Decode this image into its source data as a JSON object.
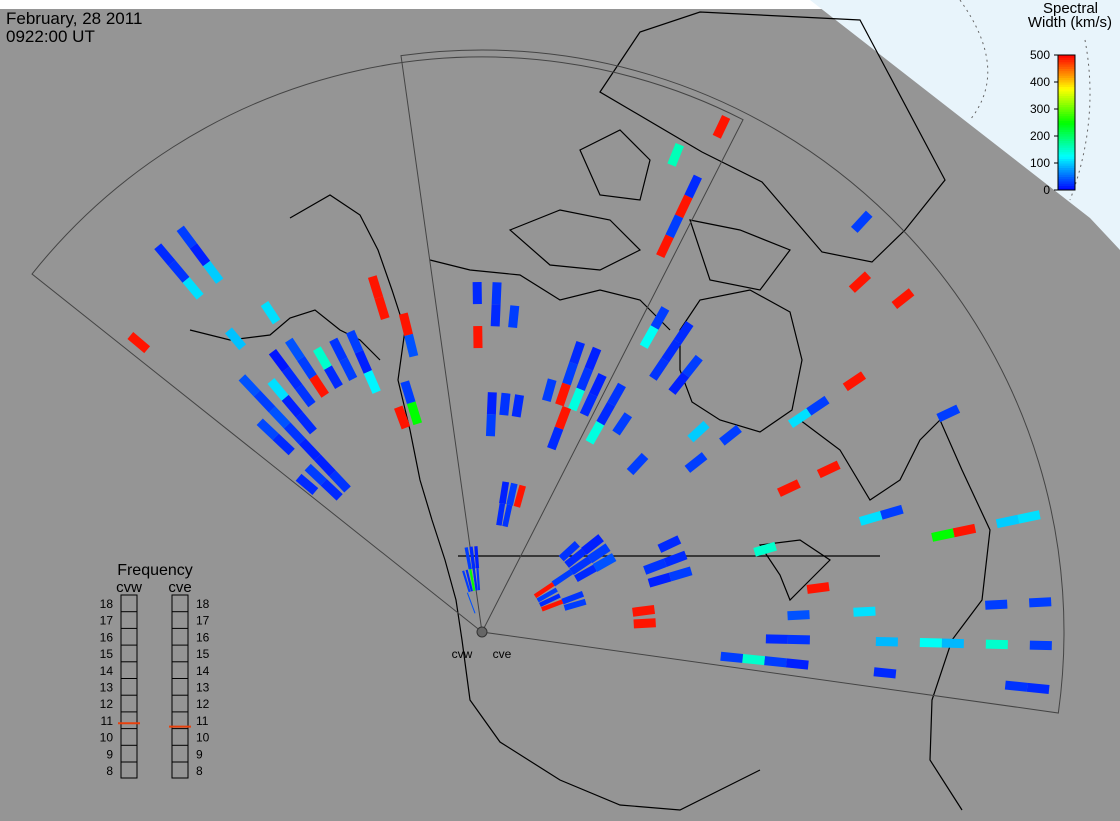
{
  "header": {
    "date": "February, 28 2011",
    "time": "0922:00 UT"
  },
  "colorbar": {
    "title_lines": [
      "Spectral",
      "Width (km/s)"
    ],
    "lim": [
      0,
      500
    ],
    "ticks": [
      0,
      100,
      200,
      300,
      400,
      500
    ]
  },
  "frequency": {
    "title": "Frequency",
    "lim": [
      8,
      18
    ],
    "ticks": [
      8,
      9,
      10,
      11,
      12,
      13,
      14,
      15,
      16,
      17,
      18
    ],
    "radars": [
      {
        "name": "cvw",
        "value": 10.8
      },
      {
        "name": "cve",
        "value": 10.6
      }
    ]
  },
  "radars": [
    {
      "name": "cvw",
      "cells": [
        [
          3,
          21,
          20
        ],
        [
          4,
          21,
          30
        ],
        [
          3,
          20,
          25
        ],
        [
          4,
          20,
          15
        ],
        [
          3,
          19,
          110
        ],
        [
          4,
          19,
          100
        ],
        [
          0,
          19,
          490
        ],
        [
          3,
          16,
          95
        ],
        [
          5,
          16,
          110
        ],
        [
          1,
          11,
          20
        ],
        [
          1,
          12,
          35
        ],
        [
          2,
          10,
          15
        ],
        [
          2,
          11,
          25
        ],
        [
          2,
          12,
          40
        ],
        [
          2,
          13,
          30
        ],
        [
          3,
          11,
          20
        ],
        [
          3,
          12,
          15
        ],
        [
          3,
          13,
          110
        ],
        [
          4,
          12,
          25
        ],
        [
          4,
          13,
          20
        ],
        [
          4,
          14,
          10
        ],
        [
          5,
          13,
          30
        ],
        [
          5,
          14,
          40
        ],
        [
          5,
          12,
          490
        ],
        [
          2,
          14,
          40
        ],
        [
          1,
          8,
          20
        ],
        [
          1,
          9,
          30
        ],
        [
          2,
          8,
          25
        ],
        [
          2,
          9,
          15
        ],
        [
          0,
          9,
          20
        ],
        [
          7,
          12,
          30
        ],
        [
          7,
          13,
          25
        ],
        [
          8,
          12,
          15
        ],
        [
          8,
          11,
          120
        ],
        [
          8,
          13,
          30
        ],
        [
          6,
          12,
          20
        ],
        [
          6,
          13,
          150
        ],
        [
          10,
          9,
          250
        ],
        [
          10,
          10,
          30
        ],
        [
          9,
          9,
          490
        ],
        [
          10,
          14,
          490
        ],
        [
          11,
          13,
          490
        ],
        [
          11,
          12,
          40
        ],
        [
          10,
          15,
          490
        ],
        [
          15,
          14,
          20
        ],
        [
          16,
          14,
          25
        ],
        [
          17,
          13,
          30
        ],
        [
          16,
          13,
          20
        ],
        [
          15,
          12,
          490
        ],
        [
          16,
          9,
          15
        ],
        [
          16,
          8,
          30
        ],
        [
          17,
          9,
          25
        ],
        [
          18,
          9,
          20
        ],
        [
          18,
          4,
          20
        ],
        [
          19,
          4,
          25
        ],
        [
          19,
          5,
          30
        ],
        [
          18,
          5,
          15
        ],
        [
          20,
          5,
          490
        ],
        [
          21,
          11,
          30
        ],
        [
          22,
          11,
          25
        ],
        [
          21,
          12,
          20
        ],
        [
          22,
          12,
          15
        ],
        [
          21,
          10,
          490
        ],
        [
          20,
          10,
          30
        ],
        [
          22,
          10,
          140
        ],
        [
          22,
          22,
          160
        ],
        [
          23,
          24,
          490
        ],
        [
          23,
          20,
          490
        ],
        [
          23,
          21,
          20
        ],
        [
          23,
          18,
          490
        ],
        [
          23,
          19,
          30
        ],
        [
          10,
          1,
          30
        ],
        [
          12,
          1,
          250
        ],
        [
          13,
          1,
          20
        ],
        [
          14,
          1,
          25
        ],
        [
          11,
          1,
          20
        ],
        [
          12,
          2,
          30
        ],
        [
          13,
          2,
          20
        ],
        [
          9,
          0,
          40
        ],
        [
          14,
          2,
          15
        ]
      ]
    },
    {
      "name": "cve",
      "cells": [
        [
          13,
          4,
          20
        ],
        [
          14,
          4,
          25
        ],
        [
          14,
          5,
          30
        ],
        [
          15,
          4,
          20
        ],
        [
          13,
          5,
          15
        ],
        [
          15,
          5,
          40
        ],
        [
          12,
          4,
          25
        ],
        [
          14,
          3,
          30
        ],
        [
          17,
          8,
          20
        ],
        [
          17,
          7,
          25
        ],
        [
          18,
          8,
          30
        ],
        [
          16,
          8,
          20
        ],
        [
          18,
          7,
          15
        ],
        [
          22,
          12,
          20
        ],
        [
          22,
          13,
          25
        ],
        [
          23,
          12,
          30
        ],
        [
          23,
          13,
          15
        ],
        [
          21,
          13,
          40
        ],
        [
          22,
          24,
          30
        ],
        [
          23,
          24,
          20
        ],
        [
          23,
          23,
          25
        ],
        [
          22,
          20,
          90
        ],
        [
          22,
          19,
          130
        ],
        [
          22,
          17,
          90
        ],
        [
          23,
          17,
          20
        ],
        [
          19,
          24,
          110
        ],
        [
          19,
          23,
          100
        ],
        [
          19,
          21,
          490
        ],
        [
          19,
          20,
          250
        ],
        [
          18,
          18,
          30
        ],
        [
          18,
          17,
          110
        ],
        [
          16,
          22,
          30
        ],
        [
          13,
          23,
          490
        ],
        [
          12,
          22,
          490
        ],
        [
          11,
          24,
          30
        ],
        [
          14,
          19,
          490
        ],
        [
          14,
          17,
          30
        ],
        [
          16,
          16,
          490
        ],
        [
          16,
          14,
          490
        ],
        [
          14,
          16,
          110
        ],
        [
          13,
          13,
          30
        ],
        [
          12,
          12,
          100
        ],
        [
          13,
          11,
          30
        ],
        [
          9,
          14,
          20
        ],
        [
          9,
          13,
          25
        ],
        [
          10,
          14,
          30
        ],
        [
          10,
          13,
          15
        ],
        [
          9,
          15,
          20
        ],
        [
          8,
          15,
          30
        ],
        [
          8,
          14,
          130
        ],
        [
          8,
          10,
          20
        ],
        [
          8,
          11,
          25
        ],
        [
          9,
          10,
          30
        ],
        [
          7,
          10,
          20
        ],
        [
          7,
          11,
          15
        ],
        [
          8,
          9,
          140
        ],
        [
          6,
          8,
          20
        ],
        [
          6,
          9,
          490
        ],
        [
          11,
          9,
          30
        ],
        [
          18,
          12,
          150
        ],
        [
          20,
          14,
          490
        ],
        [
          23,
          11,
          150
        ],
        [
          23,
          10,
          30
        ],
        [
          21,
          16,
          110
        ],
        [
          21,
          22,
          30
        ],
        [
          22,
          22,
          150
        ],
        [
          21,
          24,
          30
        ],
        [
          20,
          6,
          490
        ],
        [
          21,
          6,
          490
        ],
        [
          14,
          2,
          490
        ],
        [
          15,
          2,
          30
        ],
        [
          16,
          2,
          20
        ],
        [
          17,
          3,
          25
        ],
        [
          18,
          3,
          30
        ],
        [
          17,
          2,
          490
        ]
      ]
    }
  ]
}
